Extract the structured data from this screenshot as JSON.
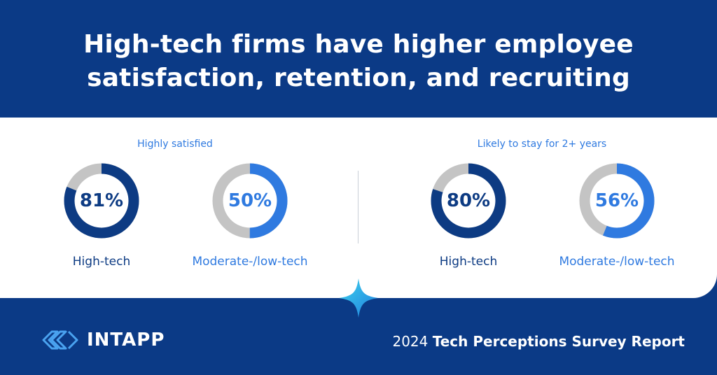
{
  "headline": {
    "line1": "High-tech firms have higher employee",
    "line2": "satisfaction, retention, and recruiting"
  },
  "colors": {
    "background": "#0b3a86",
    "dark_navy": "#0d3b83",
    "accent_blue": "#2f7ae0",
    "ring_gray": "#c4c4c4",
    "sparkle": "#2ec5e6"
  },
  "chart_data": [
    {
      "type": "pie",
      "title": "Highly satisfied",
      "categories": [
        "High-tech",
        "Moderate-/low-tech"
      ],
      "values": [
        81,
        50
      ],
      "unit": "%"
    },
    {
      "type": "pie",
      "title": "Likely to stay for 2+ years",
      "categories": [
        "High-tech",
        "Moderate-/low-tech"
      ],
      "values": [
        80,
        56
      ],
      "unit": "%"
    }
  ],
  "donut_labels": {
    "g0": [
      "81%",
      "50%"
    ],
    "g1": [
      "80%",
      "56%"
    ]
  },
  "logo": {
    "icon": "intapp-logo-icon",
    "text": "INTAPP"
  },
  "report": {
    "year": "2024",
    "name": "Tech Perceptions Survey Report"
  }
}
